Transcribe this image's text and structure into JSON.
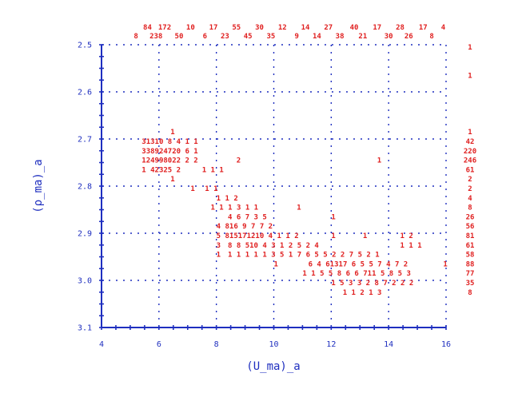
{
  "chart_data": {
    "type": "heatmap",
    "xlabel": "(U_ma)_a",
    "ylabel": "(ρ_ma)_a",
    "xlim": [
      4,
      16
    ],
    "ylim": [
      2.5,
      3.1
    ],
    "y_inverted": true,
    "x_ticks": [
      "4",
      "6",
      "8",
      "10",
      "12",
      "14",
      "16"
    ],
    "y_ticks": [
      "2.5",
      "2.6",
      "2.7",
      "2.8",
      "2.9",
      "3.0",
      "3.1"
    ],
    "grid": true,
    "color": "#e02020",
    "axis_color": "#1f2fbf",
    "x_marginal_top": [
      {
        "x": 5.6,
        "label": "84"
      },
      {
        "x": 6.2,
        "label": "172"
      },
      {
        "x": 7.1,
        "label": "10"
      },
      {
        "x": 7.9,
        "label": "17"
      },
      {
        "x": 8.7,
        "label": "55"
      },
      {
        "x": 9.5,
        "label": "30"
      },
      {
        "x": 10.3,
        "label": "12"
      },
      {
        "x": 11.1,
        "label": "14"
      },
      {
        "x": 11.9,
        "label": "27"
      },
      {
        "x": 12.8,
        "label": "40"
      },
      {
        "x": 13.6,
        "label": "17"
      },
      {
        "x": 14.4,
        "label": "28"
      },
      {
        "x": 15.2,
        "label": "17"
      },
      {
        "x": 15.9,
        "label": "4"
      }
    ],
    "x_marginal_bottom": [
      {
        "x": 5.2,
        "label": "8"
      },
      {
        "x": 5.9,
        "label": "238"
      },
      {
        "x": 6.7,
        "label": "50"
      },
      {
        "x": 7.6,
        "label": "6"
      },
      {
        "x": 8.3,
        "label": "23"
      },
      {
        "x": 9.1,
        "label": "45"
      },
      {
        "x": 9.9,
        "label": "35"
      },
      {
        "x": 10.8,
        "label": "9"
      },
      {
        "x": 11.5,
        "label": "14"
      },
      {
        "x": 12.3,
        "label": "38"
      },
      {
        "x": 13.1,
        "label": "21"
      },
      {
        "x": 14.0,
        "label": "30"
      },
      {
        "x": 14.7,
        "label": "26"
      },
      {
        "x": 15.5,
        "label": "8"
      }
    ],
    "y_marginal": [
      {
        "y": 2.505,
        "label": "1"
      },
      {
        "y": 2.565,
        "label": "1"
      },
      {
        "y": 2.685,
        "label": "1"
      },
      {
        "y": 2.705,
        "label": "42"
      },
      {
        "y": 2.725,
        "label": "220"
      },
      {
        "y": 2.745,
        "label": "246"
      },
      {
        "y": 2.765,
        "label": "61"
      },
      {
        "y": 2.785,
        "label": "2"
      },
      {
        "y": 2.805,
        "label": "2"
      },
      {
        "y": 2.825,
        "label": "4"
      },
      {
        "y": 2.845,
        "label": "8"
      },
      {
        "y": 2.865,
        "label": "26"
      },
      {
        "y": 2.885,
        "label": "56"
      },
      {
        "y": 2.905,
        "label": "81"
      },
      {
        "y": 2.925,
        "label": "61"
      },
      {
        "y": 2.945,
        "label": "58"
      },
      {
        "y": 2.965,
        "label": "88"
      },
      {
        "y": 2.985,
        "label": "77"
      },
      {
        "y": 3.005,
        "label": "35"
      },
      {
        "y": 3.025,
        "label": "8"
      }
    ],
    "cells": [
      {
        "x": 6.4,
        "y": 2.685,
        "label": "1"
      },
      {
        "x": 5.4,
        "y": 2.705,
        "label": "31310 8 4 1 1"
      },
      {
        "x": 5.4,
        "y": 2.725,
        "label": "338924720 6 1"
      },
      {
        "x": 5.4,
        "y": 2.745,
        "label": "124998022 2 2"
      },
      {
        "x": 8.7,
        "y": 2.745,
        "label": "2"
      },
      {
        "x": 13.6,
        "y": 2.745,
        "label": "1"
      },
      {
        "x": 5.4,
        "y": 2.765,
        "label": "1 42325 2"
      },
      {
        "x": 7.5,
        "y": 2.765,
        "label": "1 1 1"
      },
      {
        "x": 6.4,
        "y": 2.785,
        "label": "1"
      },
      {
        "x": 7.1,
        "y": 2.805,
        "label": "1"
      },
      {
        "x": 7.6,
        "y": 2.805,
        "label": "1 1"
      },
      {
        "x": 8.0,
        "y": 2.825,
        "label": "1 1 2"
      },
      {
        "x": 7.8,
        "y": 2.845,
        "label": "1 1 1 3 1 1"
      },
      {
        "x": 10.8,
        "y": 2.845,
        "label": "1"
      },
      {
        "x": 8.4,
        "y": 2.865,
        "label": "4 6 7 3 5"
      },
      {
        "x": 12.0,
        "y": 2.865,
        "label": "1"
      },
      {
        "x": 8.0,
        "y": 2.885,
        "label": "4 816 9 7 7 2"
      },
      {
        "x": 8.0,
        "y": 2.905,
        "label": "5 815171210 4 1 1 2"
      },
      {
        "x": 12.0,
        "y": 2.905,
        "label": "1"
      },
      {
        "x": 13.1,
        "y": 2.905,
        "label": "1"
      },
      {
        "x": 14.4,
        "y": 2.905,
        "label": "1 2"
      },
      {
        "x": 8.0,
        "y": 2.925,
        "label": "3"
      },
      {
        "x": 8.4,
        "y": 2.925,
        "label": "8 8 510 4 3 1 2 5 2 4"
      },
      {
        "x": 14.4,
        "y": 2.925,
        "label": "1 1 1"
      },
      {
        "x": 8.0,
        "y": 2.945,
        "label": "1"
      },
      {
        "x": 8.4,
        "y": 2.945,
        "label": "1 1 1 1 1 3 5 1 7 6 5 5 2 2 7 5 2 1"
      },
      {
        "x": 10.0,
        "y": 2.965,
        "label": "1"
      },
      {
        "x": 11.2,
        "y": 2.965,
        "label": "6 4 61317 6 5 5 7 4 7 2"
      },
      {
        "x": 15.9,
        "y": 2.965,
        "label": "1"
      },
      {
        "x": 11.0,
        "y": 2.985,
        "label": "1 1 5 5 8 6 6 711 5 8 5 3"
      },
      {
        "x": 12.0,
        "y": 3.005,
        "label": "1 5 3 3 2 8 7 2 2 2"
      },
      {
        "x": 12.4,
        "y": 3.025,
        "label": "1 1 2 1 3"
      }
    ]
  }
}
